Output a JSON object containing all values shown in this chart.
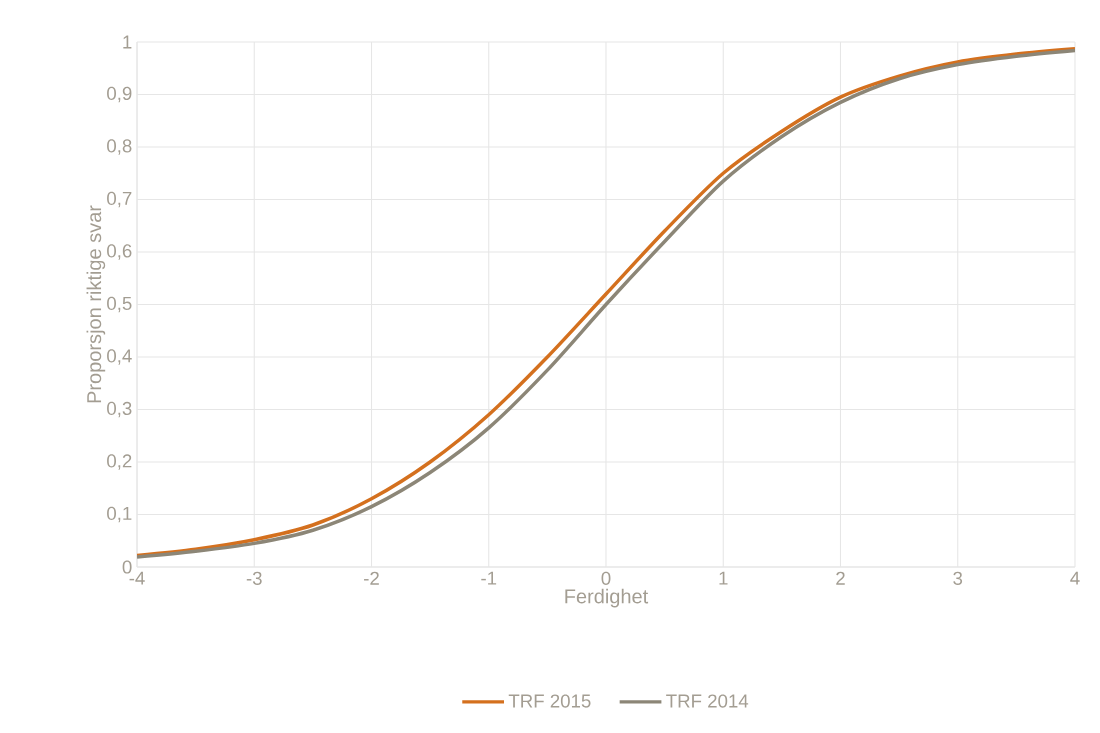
{
  "chart_data": {
    "type": "line",
    "xlabel": "Ferdighet",
    "ylabel": "Proporsjon riktige svar",
    "x": [
      -4,
      -3.5,
      -3,
      -2.5,
      -2,
      -1.5,
      -1,
      -0.5,
      0,
      0.5,
      1,
      1.5,
      2,
      2.5,
      3,
      3.5,
      4
    ],
    "series": [
      {
        "name": "TRF 2015",
        "color": "#d4701e",
        "values": [
          0.022,
          0.034,
          0.052,
          0.08,
          0.13,
          0.2,
          0.29,
          0.4,
          0.52,
          0.64,
          0.75,
          0.83,
          0.895,
          0.935,
          0.962,
          0.977,
          0.987
        ]
      },
      {
        "name": "TRF 2014",
        "color": "#8c8677",
        "values": [
          0.019,
          0.03,
          0.045,
          0.07,
          0.115,
          0.18,
          0.265,
          0.375,
          0.5,
          0.62,
          0.735,
          0.82,
          0.885,
          0.93,
          0.957,
          0.973,
          0.984
        ]
      }
    ],
    "xlim": [
      -4,
      4
    ],
    "xticks": [
      -4,
      -3,
      -2,
      -1,
      0,
      1,
      2,
      3,
      4
    ],
    "ylim": [
      0,
      1
    ],
    "yticks": [
      0,
      {
        "value": 0.1,
        "label": "0,1"
      },
      {
        "value": 0.2,
        "label": "0,2"
      },
      {
        "value": 0.3,
        "label": "0,3"
      },
      {
        "value": 0.4,
        "label": "0,4"
      },
      {
        "value": 0.5,
        "label": "0,5"
      },
      {
        "value": 0.6,
        "label": "0,6"
      },
      {
        "value": 0.7,
        "label": "0,7"
      },
      {
        "value": 0.8,
        "label": "0,8"
      },
      {
        "value": 0.9,
        "label": "0,9"
      },
      1
    ],
    "grid": true,
    "legend": "bottom",
    "marker": "none",
    "line_style": "solid"
  }
}
